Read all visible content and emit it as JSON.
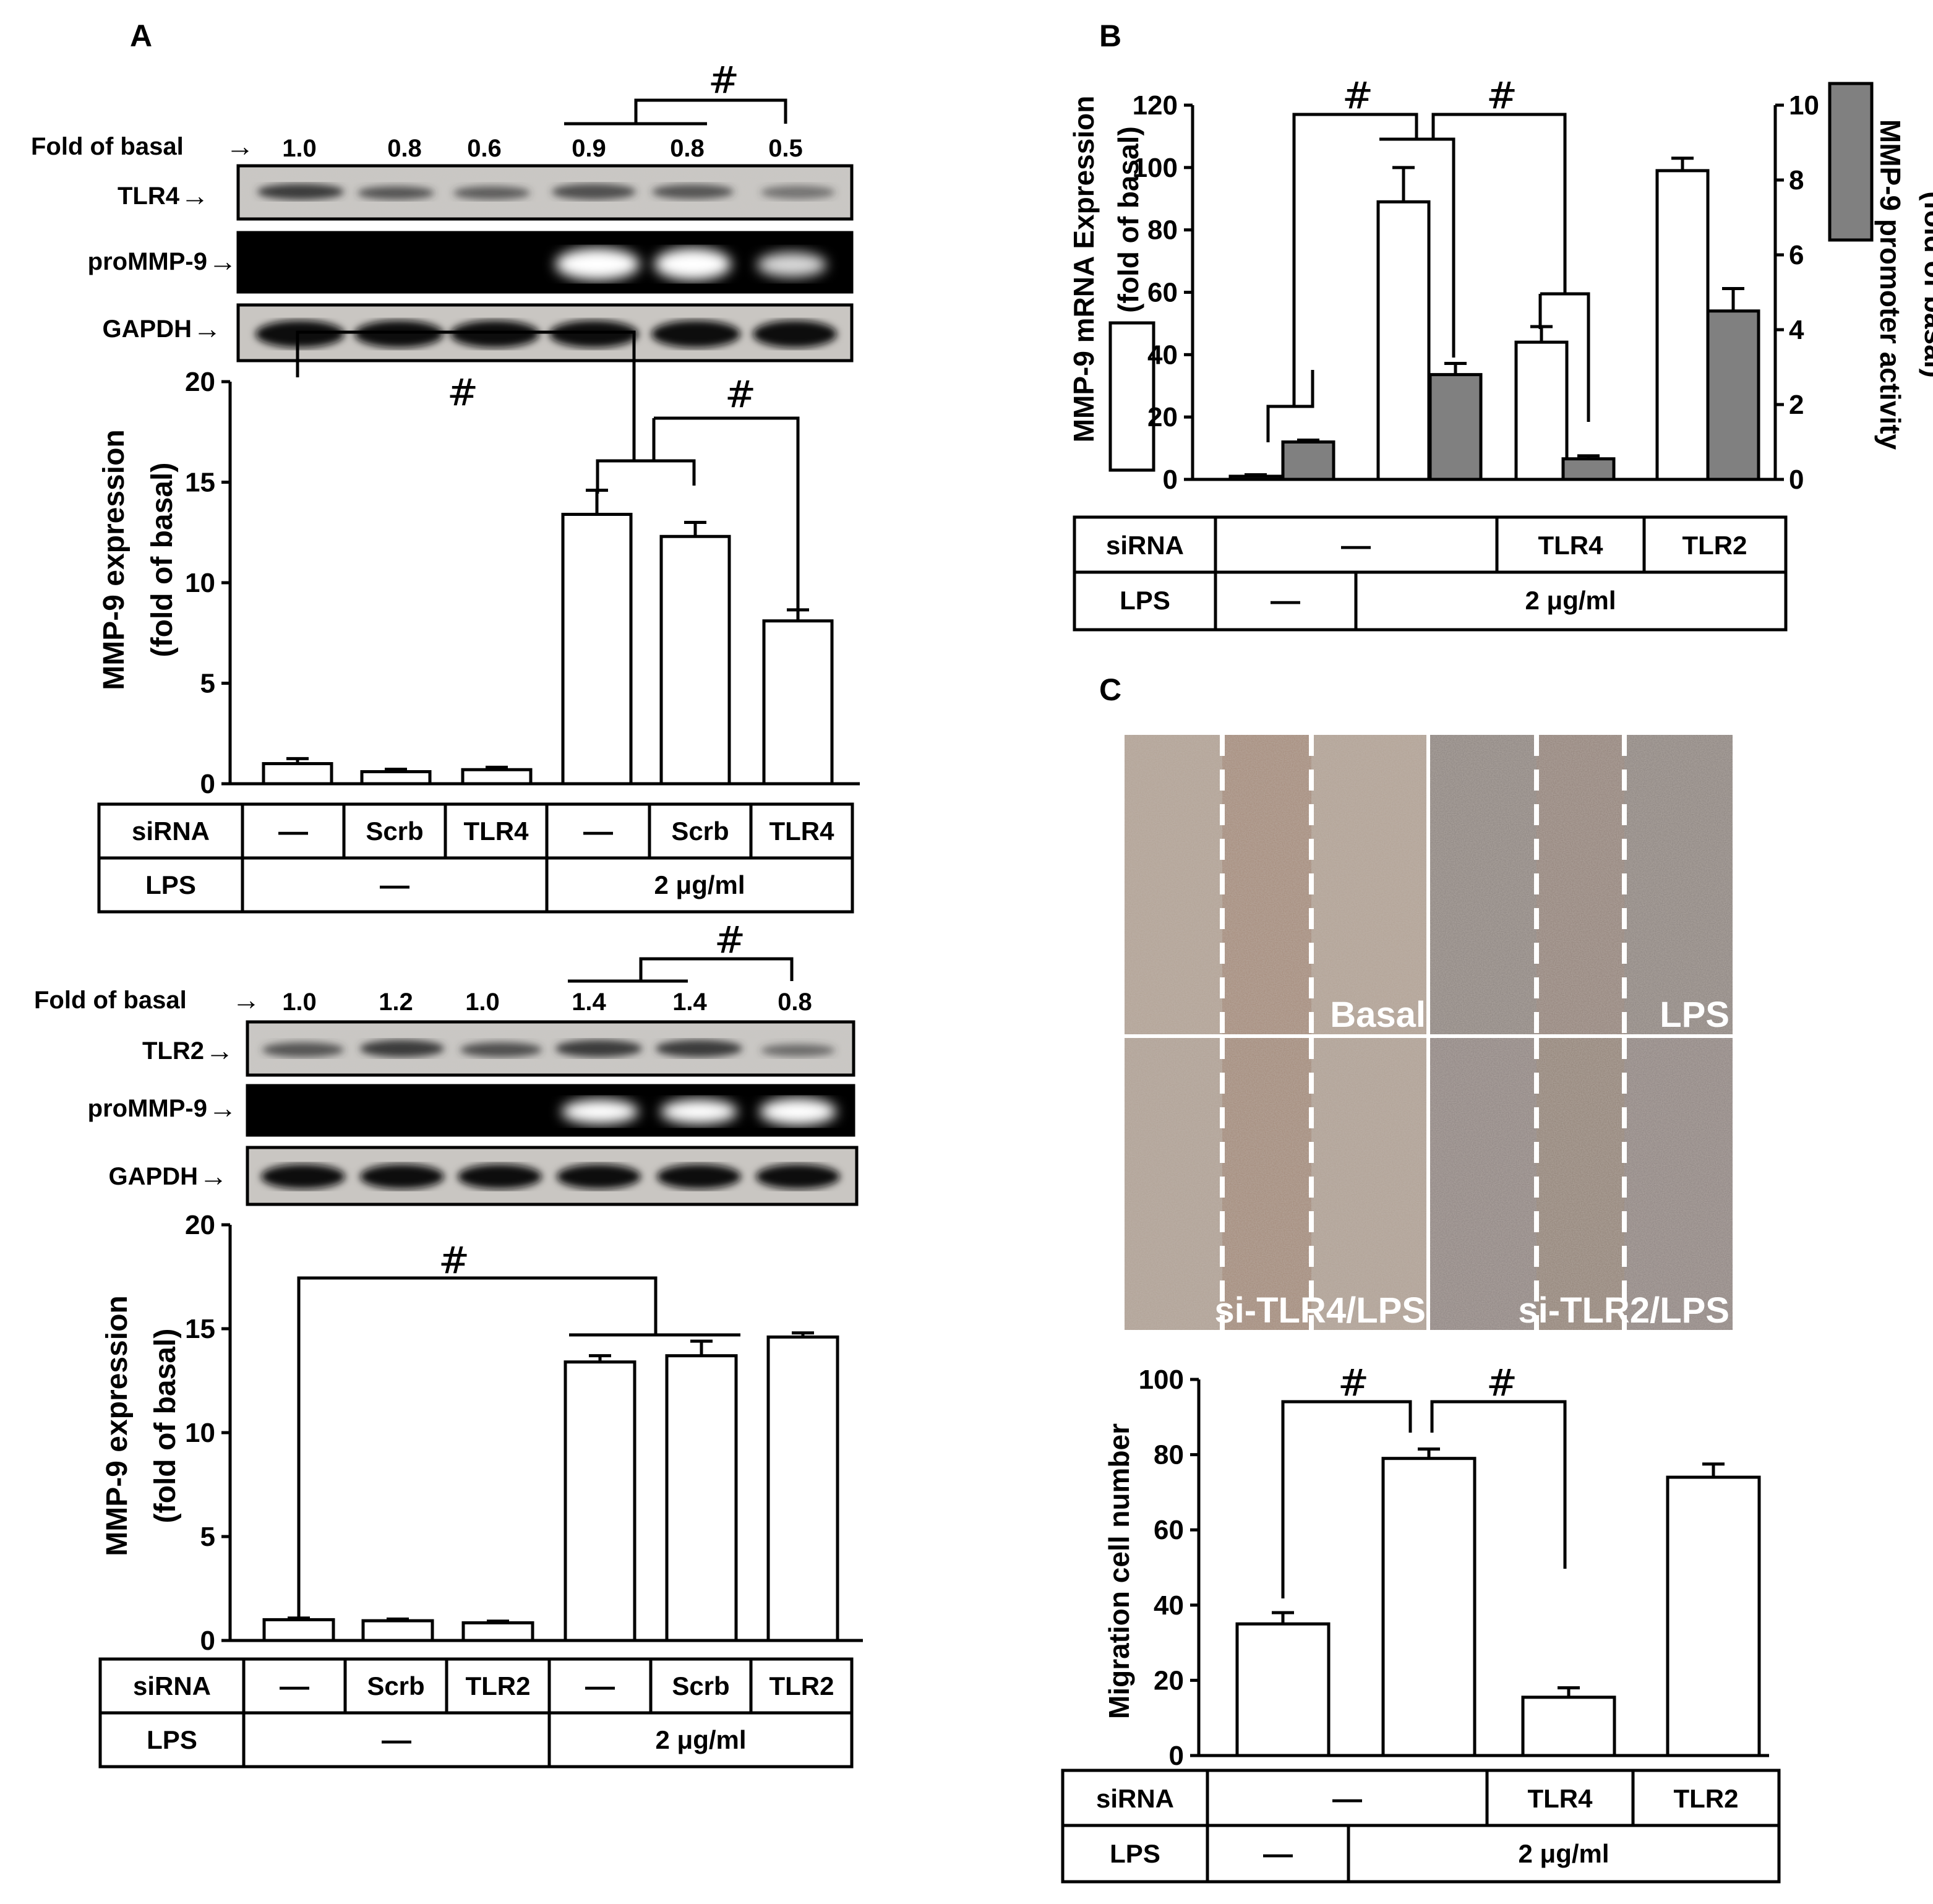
{
  "panels": {
    "a": {
      "letter": "A"
    },
    "b": {
      "letter": "B"
    },
    "c": {
      "letter": "C"
    }
  },
  "symbols": {
    "sig": "#",
    "dash": "—",
    "arrow": "→"
  },
  "colors": {
    "bar_open": "#ffffff",
    "bar_filled": "#808080",
    "ink": "#000000",
    "blot_dark": "#000000",
    "blot_gray": "#c8c8c8"
  },
  "blots": {
    "a_top": {
      "fold_label": "Fold of basal",
      "fold_values": [
        "1.0",
        "0.8",
        "0.6",
        "0.9",
        "0.8",
        "0.5"
      ],
      "rows": [
        "TLR4",
        "proMMP-9",
        "GAPDH"
      ]
    },
    "a_bottom": {
      "fold_label": "Fold of basal",
      "fold_values": [
        "1.0",
        "1.2",
        "1.0",
        "1.4",
        "1.4",
        "0.8"
      ],
      "rows": [
        "TLR2",
        "proMMP-9",
        "GAPDH"
      ]
    }
  },
  "tables": {
    "a_top": {
      "row1_label": "siRNA",
      "row1": [
        "—",
        "Scrb",
        "TLR4",
        "—",
        "Scrb",
        "TLR4"
      ],
      "row2_label": "LPS",
      "row2": [
        "—",
        "2 μg/ml"
      ]
    },
    "a_bottom": {
      "row1_label": "siRNA",
      "row1": [
        "—",
        "Scrb",
        "TLR2",
        "—",
        "Scrb",
        "TLR2"
      ],
      "row2_label": "LPS",
      "row2": [
        "—",
        "2 μg/ml"
      ]
    },
    "b": {
      "row1_label": "siRNA",
      "row1": [
        "—",
        "TLR4",
        "TLR2"
      ],
      "row2_label": "LPS",
      "row2": [
        "—",
        "2 μg/ml"
      ]
    },
    "c": {
      "row1_label": "siRNA",
      "row1": [
        "—",
        "TLR4",
        "TLR2"
      ],
      "row2_label": "LPS",
      "row2": [
        "—",
        "2 μg/ml"
      ]
    }
  },
  "micrographs": {
    "labels": [
      "Basal",
      "LPS",
      "si-TLR4/LPS",
      "si-TLR2/LPS"
    ]
  },
  "chart_data": [
    {
      "id": "a_top",
      "type": "bar",
      "ylabel_line1": "MMP-9  expression",
      "ylabel_line2": "(fold of basal)",
      "ylim": [
        0,
        20
      ],
      "yticks": [
        "0",
        "5",
        "10",
        "15",
        "20"
      ],
      "values": [
        1.0,
        0.6,
        0.7,
        13.4,
        12.3,
        8.1
      ],
      "errors": [
        0.25,
        0.12,
        0.12,
        1.2,
        0.7,
        0.55
      ]
    },
    {
      "id": "a_bottom",
      "type": "bar",
      "ylabel_line1": "MMP-9  expression",
      "ylabel_line2": "(fold of basal)",
      "ylim": [
        0,
        20
      ],
      "yticks": [
        "0",
        "5",
        "10",
        "15",
        "20"
      ],
      "values": [
        1.0,
        0.95,
        0.85,
        13.4,
        13.7,
        14.6
      ],
      "errors": [
        0.08,
        0.08,
        0.08,
        0.3,
        0.7,
        0.2
      ]
    },
    {
      "id": "b",
      "type": "bar",
      "ylabel_left_line1": "MMP-9 mRNA  Expression",
      "ylabel_left_line2": "(fold of basal)",
      "ylabel_right_line1": "MMP-9 promoter activity",
      "ylabel_right_line2": "(fold of basal)",
      "ylim_left": [
        0,
        120
      ],
      "yticks_left": [
        "0",
        "20",
        "40",
        "60",
        "80",
        "100",
        "120"
      ],
      "ylim_right": [
        0,
        10
      ],
      "yticks_right": [
        "0",
        "2",
        "4",
        "6",
        "8",
        "10"
      ],
      "series": [
        {
          "axis": "left",
          "style": "open",
          "values": [
            1,
            89,
            44,
            99
          ],
          "errors": [
            0.5,
            11,
            5,
            4
          ]
        },
        {
          "axis": "right",
          "style": "filled",
          "values": [
            1.0,
            2.8,
            0.55,
            4.5
          ],
          "errors": [
            0.05,
            0.3,
            0.08,
            0.6
          ]
        }
      ]
    },
    {
      "id": "c",
      "type": "bar",
      "ylabel": "Migration cell number",
      "ylim": [
        0,
        100
      ],
      "yticks": [
        "0",
        "20",
        "40",
        "60",
        "80",
        "100"
      ],
      "values": [
        35,
        79,
        15.5,
        74
      ],
      "errors": [
        3,
        2.5,
        2.5,
        3.5
      ]
    }
  ]
}
